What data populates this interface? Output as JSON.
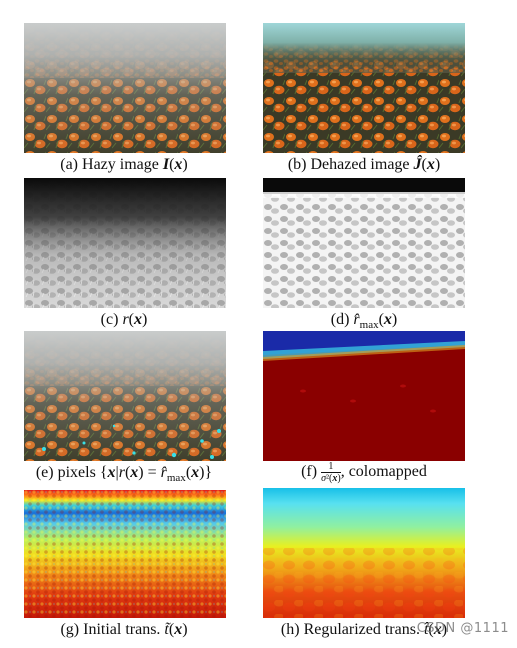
{
  "figure": {
    "panels": [
      {
        "id": "a",
        "caption_prefix": "(a) Hazy image ",
        "caption_math": "I(x)",
        "image_type": "hazy-pumpkin-field"
      },
      {
        "id": "b",
        "caption_prefix": "(b) Dehazed image ",
        "caption_math": "Ĵ(x)",
        "image_type": "dehazed-pumpkin-field"
      },
      {
        "id": "c",
        "caption_prefix": "(c) ",
        "caption_math": "r(x)",
        "image_type": "grayscale-radius-map"
      },
      {
        "id": "d",
        "caption_prefix": "(d) ",
        "caption_math": "r̂max(x)",
        "image_type": "grayscale-max-radius-map"
      },
      {
        "id": "e",
        "caption_prefix": "(e) pixels ",
        "caption_math": "{x|r(x) = r̂max(x)}",
        "image_type": "hazy-with-cyan-pixels"
      },
      {
        "id": "f",
        "caption_prefix": "(f) ",
        "caption_math": "1/σ²(x)",
        "caption_suffix": ", colomapped",
        "image_type": "jet-colormap-red"
      },
      {
        "id": "g",
        "caption_prefix": "(g) Initial trans. ",
        "caption_math": "t̃(x)",
        "image_type": "jet-colormap-noisy-transmission"
      },
      {
        "id": "h",
        "caption_prefix": "(h) Regularized trans. ",
        "caption_math": "t̂(x)",
        "image_type": "jet-colormap-smooth-transmission"
      }
    ],
    "watermark": "CSDN @1111"
  }
}
